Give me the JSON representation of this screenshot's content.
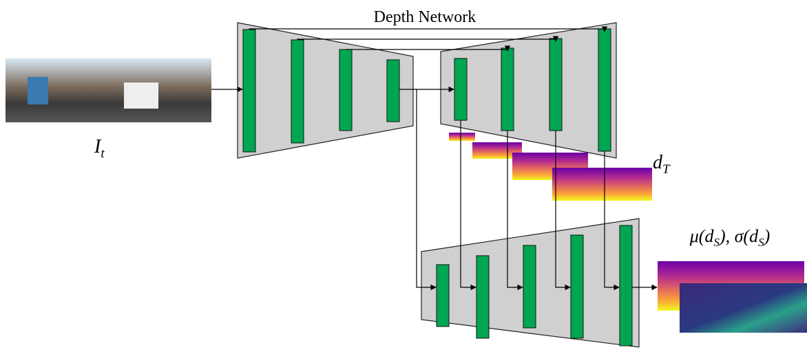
{
  "title": "Depth Network",
  "input_label": {
    "base": "I",
    "sub": "t"
  },
  "depth_label": {
    "base": "d",
    "sub": "T"
  },
  "output_label": {
    "parts": [
      "μ(d",
      "S",
      "), σ(d",
      "S",
      ")"
    ]
  }
}
